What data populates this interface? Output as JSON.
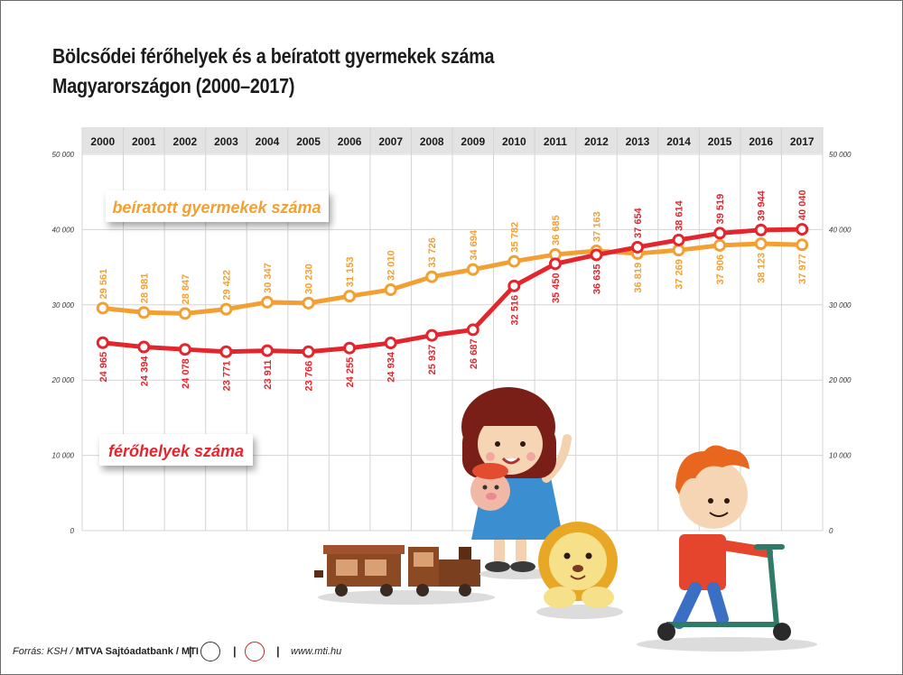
{
  "title_line1": "Bölcsődei férőhelyek és a beíratott gyermekek száma",
  "title_line2": "Magyarországon (2000–2017)",
  "source": {
    "prefix": "Forrás: KSH / ",
    "agency": "MTVA Sajtóadatbank / MTI",
    "logo1": "MTVA",
    "website": "www.mti.hu"
  },
  "colors": {
    "enrolled": "#f2a033",
    "places": "#e3262d",
    "year_bar": "#e3e3e3",
    "grid": "#d4d4d4"
  },
  "chart_data": {
    "type": "line",
    "x": [
      "2000",
      "2001",
      "2002",
      "2003",
      "2004",
      "2005",
      "2006",
      "2007",
      "2008",
      "2009",
      "2010",
      "2011",
      "2012",
      "2013",
      "2014",
      "2015",
      "2016",
      "2017"
    ],
    "ylim": [
      0,
      50000
    ],
    "yticks": [
      0,
      10000,
      20000,
      30000,
      40000,
      50000
    ],
    "ytick_labels": [
      "0",
      "10 000",
      "20 000",
      "30 000",
      "40 000",
      "50 000"
    ],
    "grid": true,
    "series": [
      {
        "name": "beíratott gyermekek száma",
        "color": "#f2a033",
        "values": [
          29561,
          28981,
          28847,
          29422,
          30347,
          30230,
          31153,
          32010,
          33726,
          34694,
          35782,
          36685,
          37163,
          36819,
          37269,
          37906,
          38123,
          37977
        ],
        "labels": [
          "29 561",
          "28 981",
          "28 847",
          "29 422",
          "30 347",
          "30 230",
          "31 153",
          "32 010",
          "33 726",
          "34 694",
          "35 782",
          "36 685",
          "37 163",
          "36 819",
          "37 269",
          "37 906",
          "38 123",
          "37 977"
        ]
      },
      {
        "name": "férőhelyek száma",
        "color": "#e3262d",
        "values": [
          24965,
          24394,
          24078,
          23771,
          23911,
          23766,
          24255,
          24934,
          25937,
          26687,
          32516,
          35450,
          36635,
          37654,
          38614,
          39519,
          39944,
          40040
        ],
        "labels": [
          "24 965",
          "24 394",
          "24 078",
          "23 771",
          "23 911",
          "23 766",
          "24 255",
          "24 934",
          "25 937",
          "26 687",
          "32 516",
          "35 450",
          "36 635",
          "37 654",
          "38 614",
          "39 519",
          "39 944",
          "40 040"
        ]
      }
    ]
  }
}
